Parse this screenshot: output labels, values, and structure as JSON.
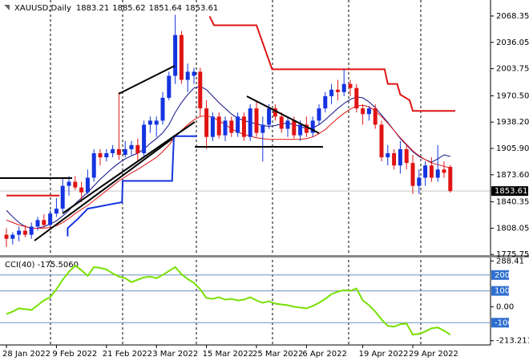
{
  "chart_data": {
    "type": "candlestick",
    "title": "XAUUSD,Daily",
    "categories": [
      "28 Jan 2022",
      null,
      null,
      null,
      null,
      null,
      null,
      null,
      "9 Feb 2022",
      null,
      null,
      null,
      null,
      null,
      null,
      null,
      "21 Feb 2022",
      null,
      null,
      null,
      null,
      null,
      null,
      null,
      "3 Mar 2022",
      null,
      null,
      null,
      null,
      null,
      null,
      null,
      "15 Mar 2022",
      null,
      null,
      null,
      null,
      null,
      null,
      null,
      "25 Mar 2022",
      null,
      null,
      null,
      null,
      null,
      null,
      null,
      "6 Apr 2022",
      null,
      null,
      null,
      null,
      null,
      null,
      null,
      null,
      "19 Apr 2022",
      null,
      null,
      null,
      null,
      null,
      null,
      null,
      "29 Apr 2022",
      null,
      null,
      null,
      null,
      null,
      null
    ],
    "open": [
      1800,
      1795,
      1800,
      1805,
      1800,
      1810,
      1818,
      1812,
      1826,
      1832,
      1860,
      1865,
      1858,
      1852,
      1870,
      1900,
      1895,
      1900,
      1905,
      1898,
      1905,
      1910,
      1900,
      1935,
      1935,
      1940,
      1968,
      1995,
      2045,
      1990,
      1995,
      2000,
      1955,
      1920,
      1945,
      1922,
      1940,
      1925,
      1945,
      1920,
      1955,
      1925,
      1935,
      1955,
      1945,
      1930,
      1940,
      1922,
      1935,
      1925,
      1940,
      1955,
      1970,
      1978,
      1975,
      1985,
      1980,
      1955,
      1948,
      1955,
      1935,
      1895,
      1900,
      1885,
      1905,
      1888,
      1860,
      1870,
      1885,
      1870,
      1880,
      1883.21
    ],
    "high": [
      1808,
      1803,
      1810,
      1812,
      1815,
      1822,
      1825,
      1830,
      1845,
      1870,
      1872,
      1872,
      1865,
      1880,
      1905,
      1905,
      1905,
      1910,
      1975,
      1915,
      1915,
      1918,
      1940,
      1945,
      1945,
      1975,
      2000,
      2070,
      2050,
      2010,
      2005,
      2005,
      1965,
      1950,
      1950,
      1945,
      1945,
      1950,
      1950,
      1960,
      1965,
      1945,
      1960,
      1960,
      1950,
      1945,
      1945,
      1940,
      1945,
      1945,
      1960,
      1975,
      1985,
      1990,
      2003,
      1990,
      1985,
      1960,
      1958,
      1960,
      1940,
      1910,
      1905,
      1915,
      1910,
      1898,
      1880,
      1890,
      1895,
      1910,
      1890,
      1885.62
    ],
    "low": [
      1785,
      1788,
      1792,
      1797,
      1795,
      1805,
      1808,
      1810,
      1822,
      1828,
      1848,
      1855,
      1840,
      1850,
      1865,
      1885,
      1890,
      1895,
      1892,
      1895,
      1898,
      1890,
      1895,
      1925,
      1920,
      1935,
      1965,
      1985,
      1985,
      1975,
      1985,
      1945,
      1905,
      1915,
      1918,
      1915,
      1920,
      1920,
      1915,
      1915,
      1920,
      1890,
      1930,
      1940,
      1925,
      1920,
      1918,
      1915,
      1920,
      1920,
      1935,
      1950,
      1960,
      1965,
      1970,
      1970,
      1950,
      1935,
      1940,
      1930,
      1890,
      1885,
      1880,
      1875,
      1880,
      1850,
      1850,
      1860,
      1865,
      1865,
      1870,
      1851.64
    ],
    "close": [
      1795,
      1800,
      1805,
      1800,
      1810,
      1818,
      1812,
      1826,
      1832,
      1860,
      1865,
      1858,
      1852,
      1870,
      1900,
      1895,
      1900,
      1905,
      1898,
      1905,
      1910,
      1900,
      1935,
      1940,
      1940,
      1968,
      1995,
      2045,
      1990,
      2000,
      2000,
      1955,
      1920,
      1945,
      1922,
      1940,
      1925,
      1945,
      1920,
      1955,
      1925,
      1935,
      1955,
      1945,
      1930,
      1940,
      1922,
      1935,
      1925,
      1940,
      1955,
      1970,
      1978,
      1975,
      1985,
      1980,
      1955,
      1948,
      1955,
      1935,
      1895,
      1900,
      1885,
      1905,
      1888,
      1860,
      1870,
      1885,
      1870,
      1880,
      1876,
      1853.61
    ],
    "up_color": "#1434e0",
    "down_color": "#e01414",
    "ylim": [
      1775,
      2088
    ],
    "yticks": [
      2068.35,
      2036.05,
      2003.75,
      {
        "value": 1970.5,
        "label": "1970.50"
      },
      {
        "value": 1938.2,
        "label": "1938.20"
      },
      {
        "value": 1905.9,
        "label": "1905.90"
      },
      {
        "value": 1873.6,
        "label": "1873.60"
      },
      1840.35,
      1808.05,
      1775.75
    ],
    "lines": [
      {
        "color": "#10108c",
        "values": [
          1830,
          1822,
          1815,
          1810,
          1808,
          1808,
          1810,
          1813,
          1817,
          1823,
          1830,
          1838,
          1845,
          1852,
          1860,
          1868,
          1875,
          1882,
          1888,
          1893,
          1897,
          1900,
          1905,
          1912,
          1918,
          1925,
          1935,
          1950,
          1962,
          1972,
          1980,
          1982,
          1978,
          1970,
          1962,
          1955,
          1948,
          1943,
          1940,
          1938,
          1936,
          1934,
          1933,
          1934,
          1936,
          1937,
          1935,
          1933,
          1930,
          1931,
          1935,
          1941,
          1948,
          1955,
          1961,
          1966,
          1969,
          1968,
          1963,
          1956,
          1947,
          1938,
          1928,
          1918,
          1910,
          1902,
          1896,
          1892,
          1889,
          1893,
          1898,
          1896
        ]
      },
      {
        "color": "#e01414",
        "values": [
          1818,
          1815,
          1812,
          1810,
          1808,
          1808,
          1808,
          1809,
          1811,
          1815,
          1820,
          1826,
          1831,
          1836,
          1842,
          1848,
          1854,
          1860,
          1866,
          1871,
          1876,
          1880,
          1885,
          1890,
          1895,
          1902,
          1910,
          1920,
          1928,
          1935,
          1941,
          1945,
          1946,
          1944,
          1940,
          1935,
          1930,
          1926,
          1923,
          1921,
          1919,
          1918,
          1917,
          1917,
          1917,
          1917,
          1917,
          1917,
          1918,
          1920,
          1924,
          1929,
          1936,
          1943,
          1949,
          1954,
          1958,
          1959,
          1957,
          1952,
          1945,
          1937,
          1928,
          1919,
          1911,
          1903,
          1897,
          1892,
          1888,
          1886,
          1884,
          1882
        ]
      }
    ],
    "steps": [
      {
        "color": "#e01414",
        "x": [
          0,
          8.5,
          null,
          32.5,
          33.2,
          40,
          42.5,
          60.5,
          61,
          62.5,
          63,
          64.5,
          65,
          71.8
        ],
        "values": [
          1848,
          1848,
          null,
          2068,
          2057,
          2057,
          2003,
          2003,
          1985,
          1985,
          1972,
          1965,
          1952,
          1952
        ]
      },
      {
        "color": "#1434e0",
        "x": [
          9.8,
          9.8,
          11.5,
          13,
          18.5,
          18.6,
          26.5,
          26.8,
          30.5
        ],
        "values": [
          1798,
          1808,
          1820,
          1832,
          1840,
          1866,
          1866,
          1921,
          1921
        ]
      }
    ],
    "indicator": {
      "type": "line",
      "label": "CCI(40) -175.5060",
      "color": "#77e000",
      "level_color": "#2f6fd0",
      "values": [
        -45,
        -30,
        -10,
        -15,
        -20,
        10,
        40,
        60,
        110,
        170,
        220,
        260,
        230,
        195,
        250,
        245,
        235,
        210,
        190,
        180,
        155,
        170,
        185,
        190,
        180,
        200,
        225,
        250,
        205,
        175,
        150,
        110,
        55,
        50,
        60,
        45,
        50,
        40,
        45,
        60,
        40,
        25,
        35,
        20,
        15,
        10,
        0,
        -5,
        -10,
        5,
        25,
        50,
        80,
        95,
        105,
        100,
        115,
        40,
        10,
        -30,
        -80,
        -120,
        -125,
        -110,
        -105,
        -175,
        -170,
        -155,
        -135,
        -130,
        -150,
        -175.506
      ],
      "ylim": [
        -240,
        310
      ],
      "yticks": [
        288.41,
        200,
        100,
        {
          "value": 0,
          "label": "0.00"
        },
        -100,
        -213.2113
      ]
    }
  }
}
